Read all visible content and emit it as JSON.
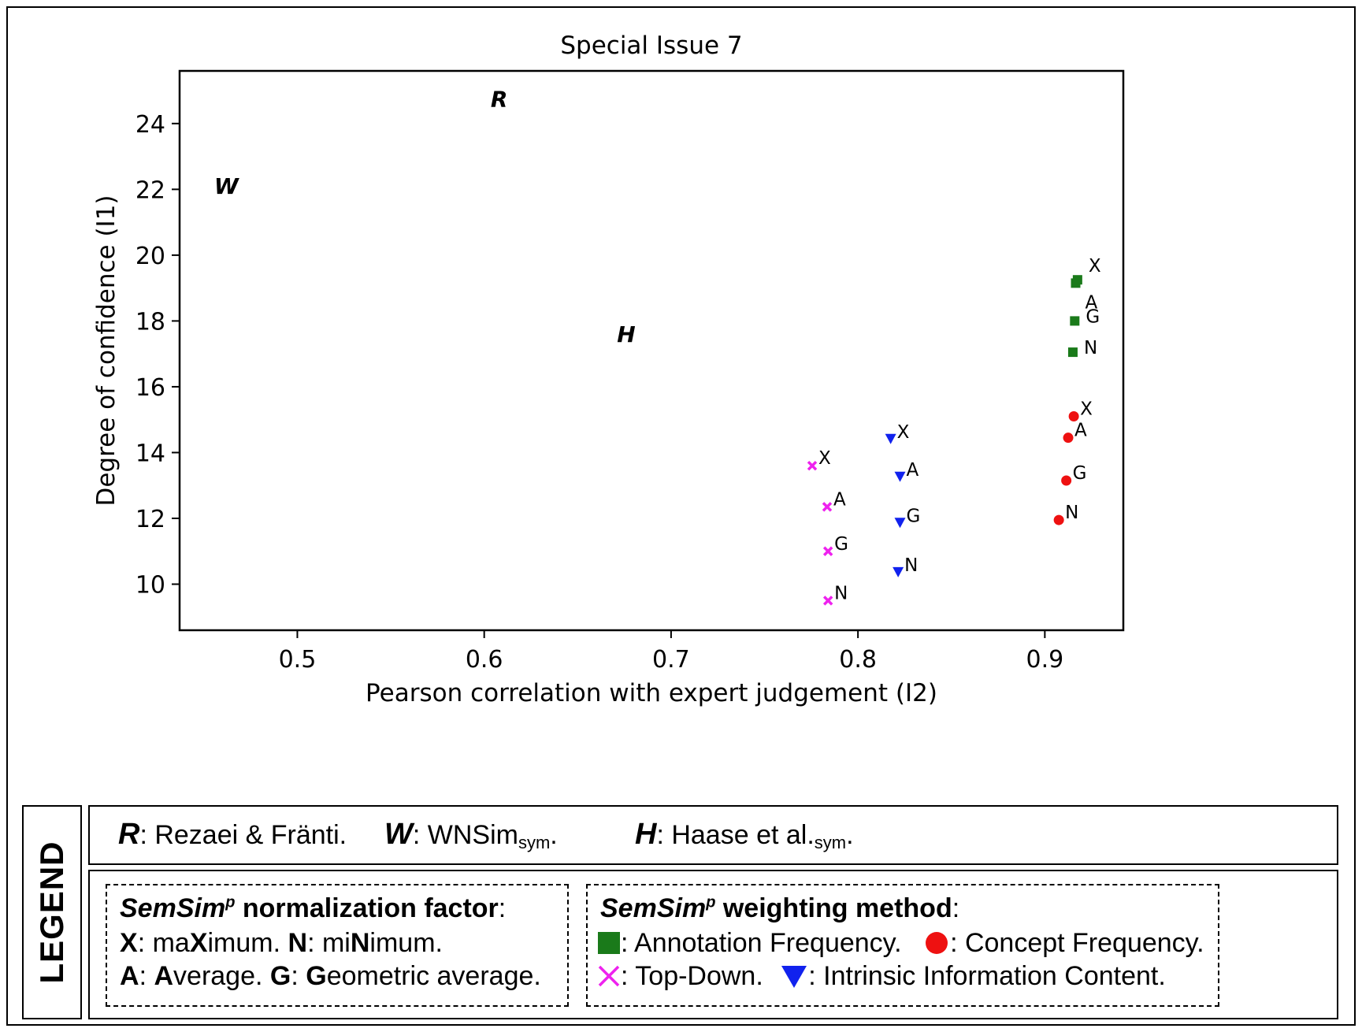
{
  "chart_data": {
    "type": "scatter",
    "title": "Special Issue 7",
    "xlabel": "Pearson correlation with expert judgement (I2)",
    "ylabel": "Degree of confidence (I1)",
    "xlim": [
      0.437,
      0.942
    ],
    "ylim": [
      8.6,
      25.6
    ],
    "xticks": [
      0.5,
      0.6,
      0.7,
      0.8,
      0.9
    ],
    "xtick_labels": [
      "0.5",
      "0.6",
      "0.7",
      "0.8",
      "0.9"
    ],
    "yticks": [
      10,
      12,
      14,
      16,
      18,
      20,
      22,
      24
    ],
    "ytick_labels": [
      "10",
      "12",
      "14",
      "16",
      "18",
      "20",
      "22",
      "24"
    ],
    "series": [
      {
        "name": "Annotation Frequency",
        "marker": "square",
        "color": "#1a7a1a",
        "points": [
          {
            "label": "X",
            "x": 0.9175,
            "y": 19.25
          },
          {
            "label": "A",
            "x": 0.9165,
            "y": 19.15
          },
          {
            "label": "G",
            "x": 0.916,
            "y": 18.0
          },
          {
            "label": "N",
            "x": 0.915,
            "y": 17.05
          }
        ]
      },
      {
        "name": "Concept Frequency",
        "marker": "circle",
        "color": "#ee1111",
        "points": [
          {
            "label": "X",
            "x": 0.9155,
            "y": 15.1
          },
          {
            "label": "A",
            "x": 0.9125,
            "y": 14.45
          },
          {
            "label": "G",
            "x": 0.9115,
            "y": 13.15
          },
          {
            "label": "N",
            "x": 0.9075,
            "y": 11.95
          }
        ]
      },
      {
        "name": "Top-Down",
        "marker": "x",
        "color": "#ee22ee",
        "points": [
          {
            "label": "X",
            "x": 0.7755,
            "y": 13.6
          },
          {
            "label": "A",
            "x": 0.7835,
            "y": 12.35
          },
          {
            "label": "G",
            "x": 0.784,
            "y": 11.0
          },
          {
            "label": "N",
            "x": 0.784,
            "y": 9.5
          }
        ]
      },
      {
        "name": "Intrinsic Information Content",
        "marker": "triangle-down",
        "color": "#1122ee",
        "points": [
          {
            "label": "X",
            "x": 0.8175,
            "y": 14.4
          },
          {
            "label": "A",
            "x": 0.8225,
            "y": 13.25
          },
          {
            "label": "G",
            "x": 0.8225,
            "y": 11.85
          },
          {
            "label": "N",
            "x": 0.8215,
            "y": 10.35
          }
        ]
      }
    ],
    "annotations": [
      {
        "text": "R",
        "x": 0.608,
        "y": 24.75
      },
      {
        "text": "W",
        "x": 0.462,
        "y": 22.1
      },
      {
        "text": "H",
        "x": 0.676,
        "y": 17.6
      }
    ]
  },
  "legend": {
    "title": "LEGEND",
    "methods": [
      {
        "sym": "R",
        "text": ": Rezaei & Fränti."
      },
      {
        "sym": "W",
        "text": ": WNSim",
        "sub": "sym",
        "after": "."
      },
      {
        "sym": "H",
        "text": ": Haase et al.",
        "sub": "sym",
        "after": "."
      }
    ],
    "normalization": {
      "header_italic": "SemSim",
      "header_sup": "p",
      "header_rest": " normalization factor",
      "header_colon": ":",
      "line1": [
        {
          "b": "X"
        },
        {
          "t": ": ma"
        },
        {
          "b": "X"
        },
        {
          "t": "imum. "
        },
        {
          "b": "N"
        },
        {
          "t": ": mi"
        },
        {
          "b": "N"
        },
        {
          "t": "imum."
        }
      ],
      "line2": [
        {
          "b": "A"
        },
        {
          "t": ": "
        },
        {
          "b": "A"
        },
        {
          "t": "verage. "
        },
        {
          "b": "G"
        },
        {
          "t": ": "
        },
        {
          "b": "G"
        },
        {
          "t": "eometric average."
        }
      ]
    },
    "weighting": {
      "header_italic": "SemSim",
      "header_sup": "p",
      "header_rest": " weighting method",
      "header_colon": ":",
      "annotation_frequency": ": Annotation Frequency.",
      "concept_frequency": ": Concept Frequency.",
      "top_down": ": Top-Down.",
      "intrinsic": ": Intrinsic Information Content."
    }
  }
}
